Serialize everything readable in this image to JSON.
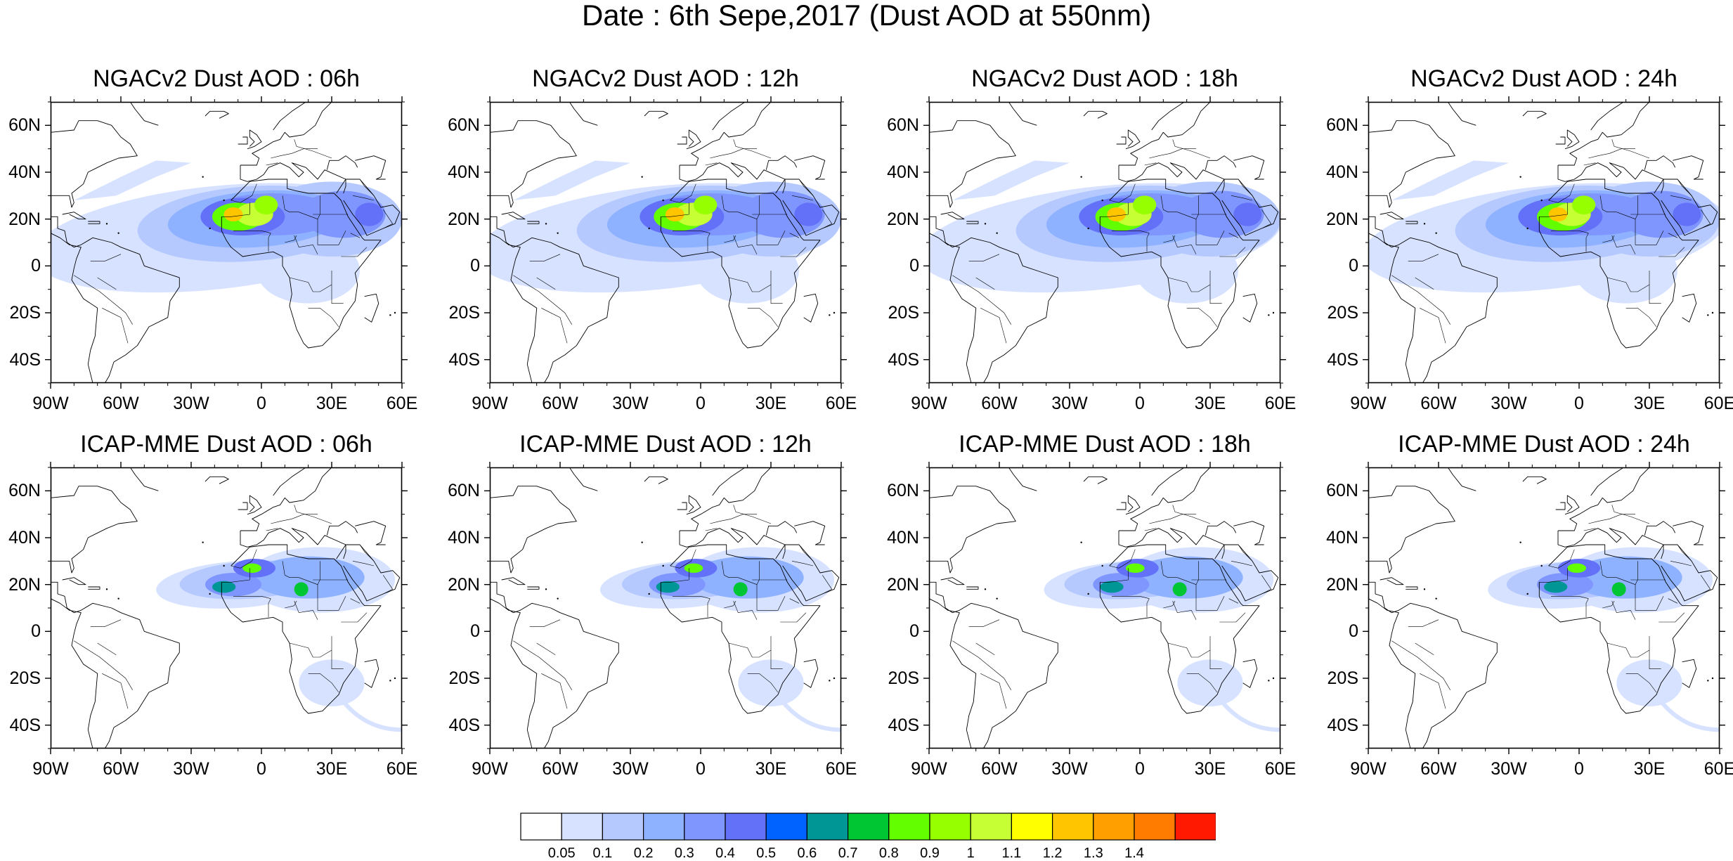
{
  "title": "Date : 6th Sepe,2017 (Dust AOD at 550nm)",
  "colorbar": {
    "colors": [
      "#ffffff",
      "#d6e2ff",
      "#b5c9ff",
      "#8eb2ff",
      "#7f96ff",
      "#6370f8",
      "#0063ff",
      "#009696",
      "#00c633",
      "#63ff00",
      "#96ff00",
      "#c6ff33",
      "#ffff00",
      "#ffc600",
      "#ffa000",
      "#ff7c00",
      "#ff1900"
    ],
    "labels": [
      "0.05",
      "0.1",
      "0.2",
      "0.3",
      "0.4",
      "0.5",
      "0.6",
      "0.7",
      "0.8",
      "0.9",
      "1",
      "1.1",
      "1.2",
      "1.3",
      "1.4"
    ]
  },
  "axes": {
    "lat_labels": [
      "60N",
      "40N",
      "20N",
      "0",
      "20S",
      "40S"
    ],
    "lat_values": [
      60,
      40,
      20,
      0,
      -20,
      -40
    ],
    "lon_labels": [
      "90W",
      "60W",
      "30W",
      "0",
      "30E",
      "60E"
    ],
    "lon_values": [
      -90,
      -60,
      -30,
      0,
      30,
      60
    ],
    "lat_range": [
      -50,
      70
    ],
    "lon_range": [
      -90,
      60
    ]
  },
  "panels": [
    {
      "title": "NGACv2 Dust AOD : 06h",
      "model": "ngac",
      "hour": 6
    },
    {
      "title": "NGACv2 Dust AOD : 12h",
      "model": "ngac",
      "hour": 12
    },
    {
      "title": "NGACv2 Dust AOD : 18h",
      "model": "ngac",
      "hour": 18
    },
    {
      "title": "NGACv2 Dust AOD : 24h",
      "model": "ngac",
      "hour": 24
    },
    {
      "title": "ICAP-MME Dust AOD : 06h",
      "model": "icap",
      "hour": 6
    },
    {
      "title": "ICAP-MME Dust AOD : 12h",
      "model": "icap",
      "hour": 12
    },
    {
      "title": "ICAP-MME Dust AOD : 18h",
      "model": "icap",
      "hour": 18
    },
    {
      "title": "ICAP-MME Dust AOD : 24h",
      "model": "icap",
      "hour": 24
    }
  ]
}
